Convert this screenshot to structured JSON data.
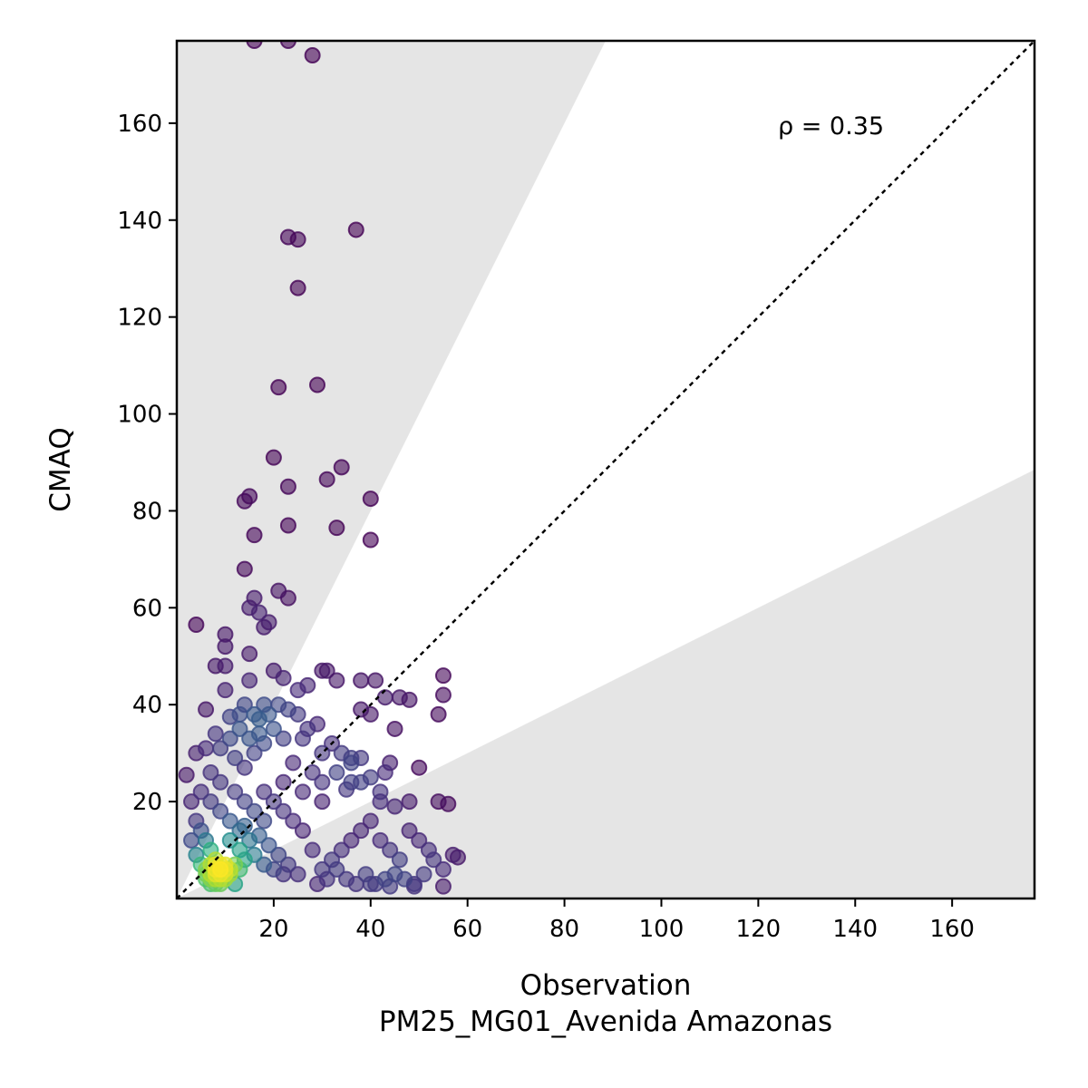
{
  "chart_data": {
    "type": "scatter",
    "title": "",
    "xlabel": "Observation",
    "xlabel_sub": "PM25_MG01_Avenida Amazonas",
    "ylabel": "CMAQ",
    "xlim": [
      0,
      177
    ],
    "ylim": [
      0,
      177
    ],
    "xticks": [
      20,
      40,
      60,
      80,
      100,
      120,
      140,
      160
    ],
    "yticks": [
      20,
      40,
      60,
      80,
      100,
      120,
      140,
      160
    ],
    "grid": false,
    "annotation": "ρ = 0.35",
    "identity_line": true,
    "agreement_band": {
      "lower_slope": 0.5,
      "upper_slope": 2.0
    },
    "colormap": "viridis (point density)",
    "colors": {
      "band": "#e5e5e5",
      "low_density": "#440154",
      "high_density": "#fde725",
      "identity": "#000000"
    },
    "points": [
      [
        16,
        177
      ],
      [
        23,
        177
      ],
      [
        28,
        174
      ],
      [
        37,
        138
      ],
      [
        23,
        136.5
      ],
      [
        25,
        136
      ],
      [
        25,
        126
      ],
      [
        29,
        106
      ],
      [
        21,
        105.5
      ],
      [
        20,
        91
      ],
      [
        34,
        89
      ],
      [
        31,
        86.5
      ],
      [
        23,
        85
      ],
      [
        40,
        82.5
      ],
      [
        15,
        83
      ],
      [
        14,
        82
      ],
      [
        23,
        77
      ],
      [
        33,
        76.5
      ],
      [
        16,
        75
      ],
      [
        40,
        74
      ],
      [
        14,
        68
      ],
      [
        21,
        63.5
      ],
      [
        16,
        62
      ],
      [
        23,
        62
      ],
      [
        15,
        60
      ],
      [
        17,
        59
      ],
      [
        19,
        57
      ],
      [
        18,
        56
      ],
      [
        4,
        56.5
      ],
      [
        10,
        54.5
      ],
      [
        10,
        52
      ],
      [
        15,
        50.5
      ],
      [
        8,
        48
      ],
      [
        10,
        48
      ],
      [
        30,
        47
      ],
      [
        20,
        47
      ],
      [
        31,
        47
      ],
      [
        15,
        45
      ],
      [
        22,
        45.5
      ],
      [
        33,
        45
      ],
      [
        38,
        45
      ],
      [
        41,
        45
      ],
      [
        55,
        46
      ],
      [
        27,
        44
      ],
      [
        25,
        43
      ],
      [
        10,
        43
      ],
      [
        43,
        41.5
      ],
      [
        46,
        41.5
      ],
      [
        48,
        41
      ],
      [
        55,
        42
      ],
      [
        40,
        38
      ],
      [
        38,
        39
      ],
      [
        54,
        38
      ],
      [
        6,
        39
      ],
      [
        13,
        38
      ],
      [
        11,
        37.5
      ],
      [
        17,
        37
      ],
      [
        29,
        36
      ],
      [
        45,
        35
      ],
      [
        22,
        33
      ],
      [
        26,
        33
      ],
      [
        32,
        32
      ],
      [
        34,
        30
      ],
      [
        36,
        29
      ],
      [
        38,
        29
      ],
      [
        44,
        28
      ],
      [
        43,
        26
      ],
      [
        50,
        27
      ],
      [
        6,
        31
      ],
      [
        4,
        30
      ],
      [
        2,
        25.5
      ],
      [
        35,
        22.5
      ],
      [
        36,
        24
      ],
      [
        38,
        24
      ],
      [
        30,
        20
      ],
      [
        42,
        20
      ],
      [
        45,
        19
      ],
      [
        48,
        20
      ],
      [
        54,
        20
      ],
      [
        56,
        19.5
      ],
      [
        8,
        34
      ],
      [
        9,
        31
      ],
      [
        12,
        29
      ],
      [
        14,
        27
      ],
      [
        16,
        30
      ],
      [
        18,
        32
      ],
      [
        20,
        35
      ],
      [
        25,
        38
      ],
      [
        27,
        35
      ],
      [
        30,
        30
      ],
      [
        24,
        28
      ],
      [
        28,
        26
      ],
      [
        13,
        35
      ],
      [
        11,
        33
      ],
      [
        15,
        33
      ],
      [
        17,
        34
      ],
      [
        19,
        38
      ],
      [
        21,
        40
      ],
      [
        23,
        39
      ],
      [
        18,
        40
      ],
      [
        16,
        38
      ],
      [
        14,
        40
      ],
      [
        7,
        26
      ],
      [
        9,
        24
      ],
      [
        12,
        22
      ],
      [
        14,
        20
      ],
      [
        18,
        22
      ],
      [
        22,
        24
      ],
      [
        26,
        22
      ],
      [
        30,
        24
      ],
      [
        33,
        26
      ],
      [
        36,
        28
      ],
      [
        40,
        25
      ],
      [
        42,
        22
      ],
      [
        48,
        14
      ],
      [
        50,
        12
      ],
      [
        52,
        10
      ],
      [
        53,
        8
      ],
      [
        55,
        6
      ],
      [
        57,
        9
      ],
      [
        58,
        8.5
      ],
      [
        46,
        8
      ],
      [
        44,
        10
      ],
      [
        42,
        12
      ],
      [
        40,
        16
      ],
      [
        38,
        14
      ],
      [
        36,
        12
      ],
      [
        34,
        10
      ],
      [
        32,
        8
      ],
      [
        30,
        6
      ],
      [
        28,
        10
      ],
      [
        26,
        14
      ],
      [
        24,
        16
      ],
      [
        22,
        18
      ],
      [
        20,
        20
      ],
      [
        18,
        16
      ],
      [
        16,
        18
      ],
      [
        14,
        15
      ],
      [
        45,
        5
      ],
      [
        47,
        4
      ],
      [
        49,
        3
      ],
      [
        51,
        5
      ],
      [
        41,
        3
      ],
      [
        43,
        4
      ],
      [
        39,
        5
      ],
      [
        37,
        3
      ],
      [
        35,
        4
      ],
      [
        33,
        6
      ],
      [
        31,
        4
      ],
      [
        29,
        3
      ],
      [
        55,
        2.5
      ],
      [
        49,
        2.5
      ],
      [
        44,
        2.5
      ],
      [
        40,
        3
      ],
      [
        25,
        5
      ],
      [
        23,
        7
      ],
      [
        21,
        9
      ],
      [
        19,
        11
      ],
      [
        17,
        13
      ],
      [
        15,
        12
      ],
      [
        13,
        10
      ],
      [
        11,
        12
      ],
      [
        3,
        20
      ],
      [
        4,
        16
      ],
      [
        5,
        14
      ],
      [
        6,
        12
      ],
      [
        7,
        10
      ],
      [
        8,
        8
      ],
      [
        9,
        6
      ],
      [
        10,
        5
      ],
      [
        12,
        7
      ],
      [
        13,
        6
      ],
      [
        14,
        8
      ],
      [
        16,
        9
      ],
      [
        18,
        7
      ],
      [
        20,
        6
      ],
      [
        22,
        5
      ],
      [
        7,
        20
      ],
      [
        9,
        18
      ],
      [
        11,
        16
      ],
      [
        13,
        14
      ],
      [
        5,
        22
      ],
      [
        3,
        12
      ],
      [
        4,
        9
      ],
      [
        5,
        7
      ],
      [
        6,
        5
      ],
      [
        7,
        4
      ],
      [
        8,
        3
      ],
      [
        9,
        5
      ],
      [
        10,
        4
      ],
      [
        11,
        6
      ],
      [
        12,
        3
      ],
      [
        6,
        6
      ],
      [
        7,
        7
      ],
      [
        8,
        6
      ],
      [
        9,
        7
      ],
      [
        10,
        7
      ],
      [
        7,
        5
      ],
      [
        8,
        5
      ],
      [
        9,
        4
      ],
      [
        8,
        4
      ],
      [
        7,
        3
      ],
      [
        6,
        4
      ],
      [
        10,
        6
      ],
      [
        11,
        5
      ],
      [
        9,
        3
      ],
      [
        8,
        7
      ]
    ]
  }
}
